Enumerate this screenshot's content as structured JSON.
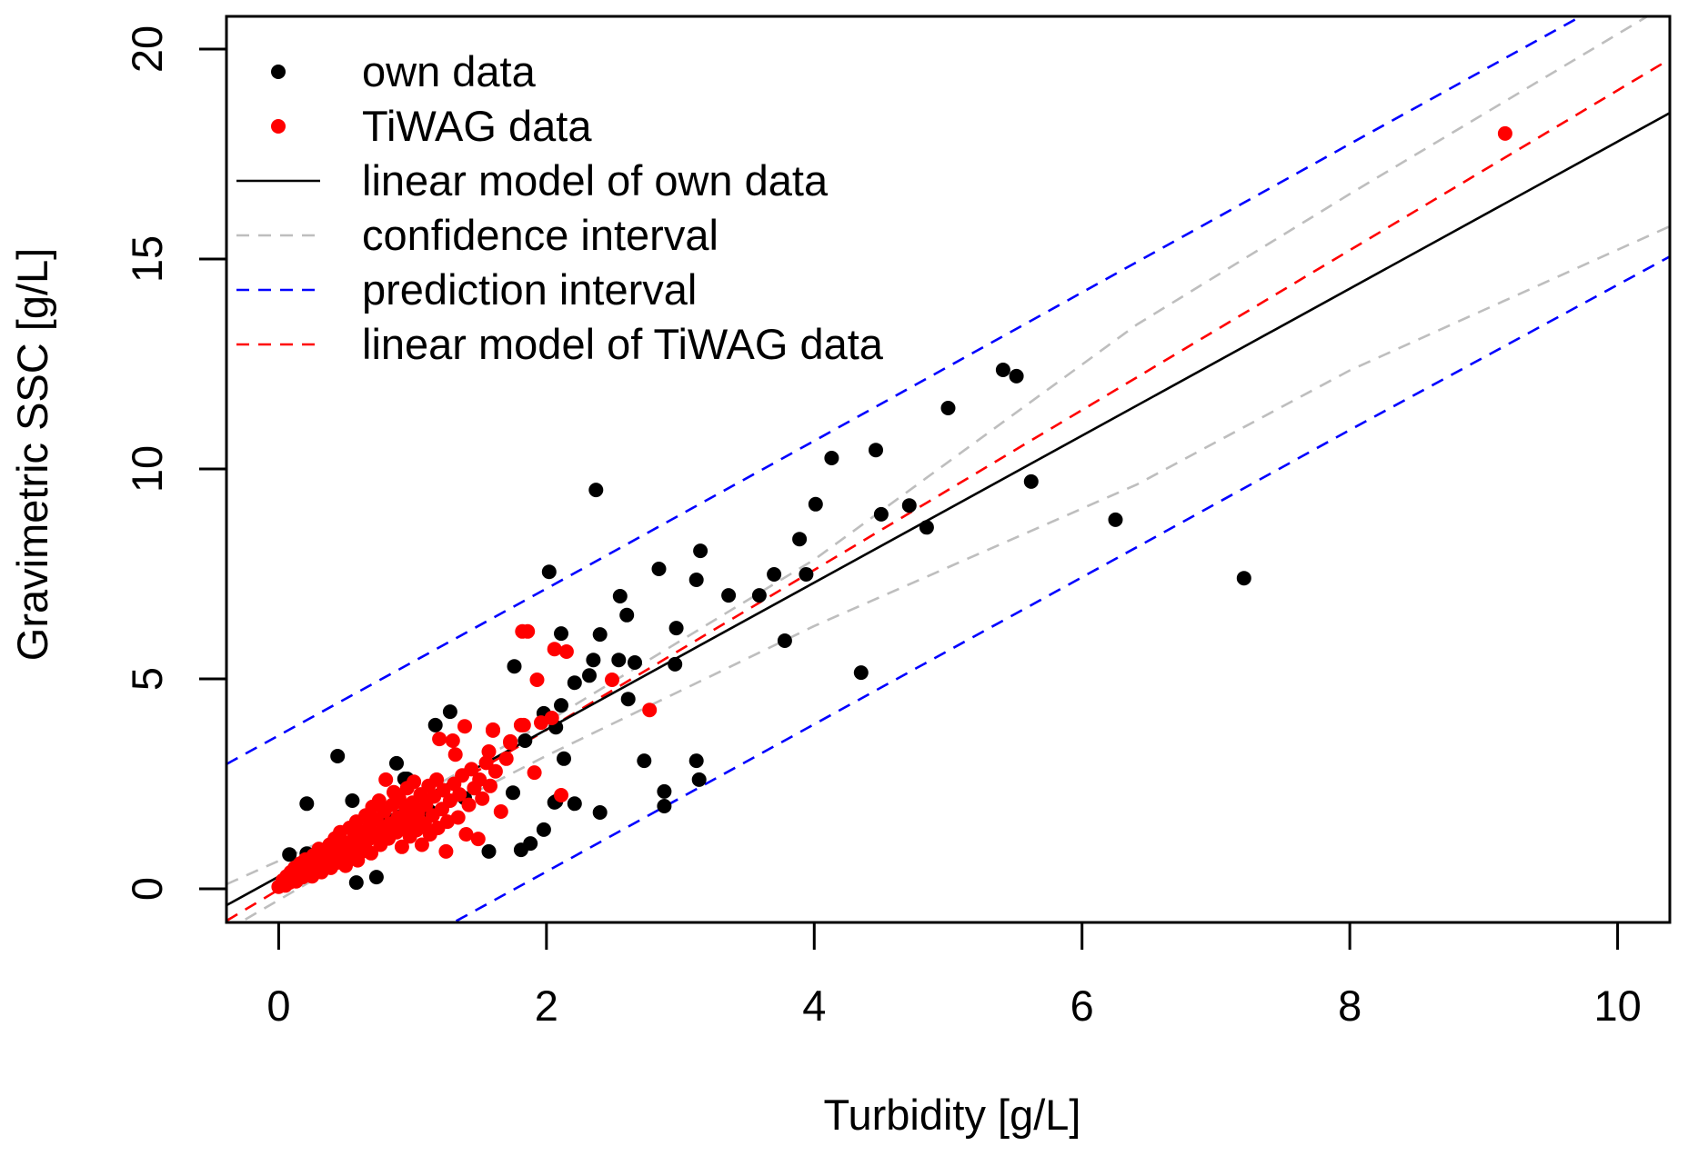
{
  "chart_data": {
    "type": "scatter",
    "title": "",
    "xlabel": "Turbidity [g/L]",
    "ylabel": "Gravimetric SSC [g/L]",
    "xlim": [
      -0.39,
      10.39
    ],
    "ylim": [
      -0.8,
      20.78
    ],
    "grid": false,
    "legend_position": "top-left",
    "x_ticks": [
      0,
      2,
      4,
      6,
      8,
      10
    ],
    "x_tick_labels": [
      "0",
      "2",
      "4",
      "6",
      "8",
      "10"
    ],
    "y_ticks": [
      0,
      5,
      10,
      15,
      20
    ],
    "y_tick_labels": [
      "0",
      "5",
      "10",
      "15",
      "20"
    ],
    "colors": {
      "own": "#000000",
      "tiwag": "#ff0000",
      "confidence": "#bebebe",
      "prediction": "#0000ff",
      "tiwag_model": "#ff0000"
    },
    "legend": [
      {
        "label": "own data",
        "kind": "point",
        "color": "#000000"
      },
      {
        "label": "TiWAG data",
        "kind": "point",
        "color": "#ff0000"
      },
      {
        "label": "linear model of own data",
        "kind": "solid",
        "color": "#000000"
      },
      {
        "label": "confidence interval",
        "kind": "dashed",
        "color": "#bebebe"
      },
      {
        "label": "prediction interval",
        "kind": "dashed",
        "color": "#0000ff"
      },
      {
        "label": "linear model of TiWAG data",
        "kind": "dashed",
        "color": "#ff0000"
      }
    ],
    "models": {
      "own": {
        "intercept": 0.29,
        "slope": 1.75
      },
      "tiwag": {
        "intercept": -0.02,
        "slope": 1.905
      }
    },
    "lines": [
      {
        "name": "prediction-upper",
        "color": "#0000ff",
        "dashed": true,
        "x": [
          -0.39,
          2,
          4,
          6.41,
          8,
          10.39
        ],
        "y": [
          2.97,
          7.15,
          10.67,
          14.93,
          17.74,
          21.95
        ]
      },
      {
        "name": "confidence-upper",
        "color": "#bebebe",
        "dashed": true,
        "x": [
          -0.39,
          0.5,
          1.0,
          2,
          4,
          6.41,
          8,
          10.39
        ],
        "y": [
          0.11,
          1.38,
          2.14,
          3.97,
          7.84,
          13.44,
          16.55,
          21.1
        ]
      },
      {
        "name": "tiwag-model",
        "color": "#ff0000",
        "dashed": true,
        "x": [
          -0.39,
          10.39
        ],
        "y": [
          -0.76,
          19.76
        ]
      },
      {
        "name": "own-model",
        "color": "#000000",
        "dashed": false,
        "x": [
          -0.39,
          10.39
        ],
        "y": [
          -0.39,
          18.48
        ]
      },
      {
        "name": "confidence-lower",
        "color": "#bebebe",
        "dashed": true,
        "x": [
          -0.39,
          0.5,
          1.0,
          2,
          4,
          6.41,
          8,
          10.39
        ],
        "y": [
          -0.99,
          0.66,
          1.54,
          3.17,
          6.26,
          9.63,
          12.35,
          15.78
        ]
      },
      {
        "name": "prediction-lower",
        "color": "#0000ff",
        "dashed": true,
        "x": [
          -0.39,
          2,
          4,
          6.41,
          8,
          10.39
        ],
        "y": [
          -3.76,
          0.41,
          3.92,
          8.14,
          10.93,
          15.06
        ]
      }
    ],
    "series": [
      {
        "name": "own data",
        "color": "#000000",
        "points": [
          [
            0.08,
            0.82
          ],
          [
            0.21,
            0.84
          ],
          [
            0.21,
            2.03
          ],
          [
            0.44,
            3.16
          ],
          [
            0.55,
            2.1
          ],
          [
            0.58,
            0.15
          ],
          [
            0.73,
            0.28
          ],
          [
            0.88,
            2.99
          ],
          [
            0.94,
            2.62
          ],
          [
            0.96,
            2.62
          ],
          [
            1.13,
            1.84
          ],
          [
            1.17,
            3.9
          ],
          [
            1.28,
            4.22
          ],
          [
            1.39,
            2.16
          ],
          [
            1.57,
            0.89
          ],
          [
            1.75,
            2.29
          ],
          [
            1.76,
            5.3
          ],
          [
            1.81,
            0.93
          ],
          [
            1.84,
            3.53
          ],
          [
            1.88,
            1.08
          ],
          [
            1.98,
            1.41
          ],
          [
            1.98,
            4.18
          ],
          [
            2.02,
            7.55
          ],
          [
            2.06,
            2.06
          ],
          [
            2.07,
            2.08
          ],
          [
            2.07,
            3.85
          ],
          [
            2.11,
            4.37
          ],
          [
            2.11,
            6.08
          ],
          [
            2.13,
            3.1
          ],
          [
            2.21,
            2.03
          ],
          [
            2.21,
            4.91
          ],
          [
            2.32,
            5.08
          ],
          [
            2.35,
            5.45
          ],
          [
            2.37,
            9.5
          ],
          [
            2.4,
            1.82
          ],
          [
            2.4,
            6.06
          ],
          [
            2.54,
            5.45
          ],
          [
            2.55,
            6.97
          ],
          [
            2.6,
            6.52
          ],
          [
            2.61,
            4.52
          ],
          [
            2.66,
            5.39
          ],
          [
            2.73,
            3.05
          ],
          [
            2.84,
            7.62
          ],
          [
            2.88,
            2.32
          ],
          [
            2.88,
            1.97
          ],
          [
            2.96,
            5.35
          ],
          [
            2.97,
            6.21
          ],
          [
            3.12,
            3.05
          ],
          [
            3.12,
            7.36
          ],
          [
            3.14,
            2.6
          ],
          [
            3.15,
            8.05
          ],
          [
            3.36,
            6.99
          ],
          [
            3.59,
            6.99
          ],
          [
            3.7,
            7.49
          ],
          [
            3.78,
            5.91
          ],
          [
            3.89,
            8.33
          ],
          [
            3.94,
            7.49
          ],
          [
            4.01,
            9.16
          ],
          [
            4.13,
            10.26
          ],
          [
            4.35,
            5.15
          ],
          [
            4.46,
            10.45
          ],
          [
            4.5,
            8.92
          ],
          [
            4.71,
            9.13
          ],
          [
            4.84,
            8.61
          ],
          [
            5.0,
            11.45
          ],
          [
            5.41,
            12.36
          ],
          [
            5.51,
            12.21
          ],
          [
            5.62,
            9.7
          ],
          [
            6.25,
            8.79
          ],
          [
            7.21,
            7.4
          ]
        ]
      },
      {
        "name": "TiWAG data",
        "color": "#ff0000",
        "points": [
          [
            0.0,
            0.05
          ],
          [
            0.02,
            0.1
          ],
          [
            0.03,
            0.2
          ],
          [
            0.05,
            0.08
          ],
          [
            0.06,
            0.3
          ],
          [
            0.08,
            0.15
          ],
          [
            0.09,
            0.4
          ],
          [
            0.1,
            0.25
          ],
          [
            0.12,
            0.5
          ],
          [
            0.13,
            0.18
          ],
          [
            0.15,
            0.35
          ],
          [
            0.16,
            0.6
          ],
          [
            0.18,
            0.28
          ],
          [
            0.19,
            0.45
          ],
          [
            0.2,
            0.7
          ],
          [
            0.22,
            0.38
          ],
          [
            0.23,
            0.55
          ],
          [
            0.25,
            0.3
          ],
          [
            0.26,
            0.8
          ],
          [
            0.28,
            0.48
          ],
          [
            0.29,
            0.65
          ],
          [
            0.3,
            0.95
          ],
          [
            0.32,
            0.4
          ],
          [
            0.33,
            0.72
          ],
          [
            0.35,
            0.58
          ],
          [
            0.36,
            0.88
          ],
          [
            0.38,
            1.05
          ],
          [
            0.39,
            0.5
          ],
          [
            0.4,
            0.75
          ],
          [
            0.42,
            1.2
          ],
          [
            0.43,
            0.62
          ],
          [
            0.45,
            0.9
          ],
          [
            0.46,
            1.35
          ],
          [
            0.48,
            0.7
          ],
          [
            0.49,
            1.1
          ],
          [
            0.5,
            0.55
          ],
          [
            0.52,
            0.95
          ],
          [
            0.53,
            1.45
          ],
          [
            0.55,
            0.8
          ],
          [
            0.56,
            1.2
          ],
          [
            0.58,
            1.6
          ],
          [
            0.59,
            0.68
          ],
          [
            0.6,
            1.05
          ],
          [
            0.62,
            1.35
          ],
          [
            0.63,
            0.9
          ],
          [
            0.65,
            1.75
          ],
          [
            0.66,
            1.15
          ],
          [
            0.68,
            1.5
          ],
          [
            0.69,
            0.85
          ],
          [
            0.7,
            1.95
          ],
          [
            0.72,
            1.25
          ],
          [
            0.73,
            1.65
          ],
          [
            0.75,
            2.1
          ],
          [
            0.76,
            1.05
          ],
          [
            0.78,
            1.4
          ],
          [
            0.79,
            1.85
          ],
          [
            0.8,
            2.6
          ],
          [
            0.82,
            1.2
          ],
          [
            0.83,
            1.55
          ],
          [
            0.85,
            2.0
          ],
          [
            0.86,
            2.3
          ],
          [
            0.88,
            1.35
          ],
          [
            0.89,
            1.7
          ],
          [
            0.9,
            2.15
          ],
          [
            0.92,
            1.0
          ],
          [
            0.93,
            1.5
          ],
          [
            0.95,
            1.9
          ],
          [
            0.96,
            2.4
          ],
          [
            0.98,
            1.25
          ],
          [
            0.99,
            1.65
          ],
          [
            1.0,
            2.05
          ],
          [
            1.01,
            2.55
          ],
          [
            1.03,
            1.4
          ],
          [
            1.04,
            1.8
          ],
          [
            1.06,
            2.25
          ],
          [
            1.07,
            1.05
          ],
          [
            1.09,
            1.55
          ],
          [
            1.1,
            2.0
          ],
          [
            1.12,
            2.45
          ],
          [
            1.13,
            1.3
          ],
          [
            1.15,
            1.75
          ],
          [
            1.16,
            2.2
          ],
          [
            1.18,
            2.6
          ],
          [
            1.19,
            1.45
          ],
          [
            1.2,
            3.57
          ],
          [
            1.22,
            1.9
          ],
          [
            1.23,
            2.35
          ],
          [
            1.25,
            0.89
          ],
          [
            1.26,
            1.6
          ],
          [
            1.28,
            2.1
          ],
          [
            1.3,
            3.53
          ],
          [
            1.31,
            2.5
          ],
          [
            1.32,
            3.2
          ],
          [
            1.34,
            1.7
          ],
          [
            1.35,
            2.25
          ],
          [
            1.37,
            2.7
          ],
          [
            1.39,
            3.87
          ],
          [
            1.4,
            1.3
          ],
          [
            1.42,
            2.0
          ],
          [
            1.44,
            2.85
          ],
          [
            1.46,
            2.4
          ],
          [
            1.49,
            1.19
          ],
          [
            1.5,
            2.6
          ],
          [
            1.52,
            2.15
          ],
          [
            1.55,
            3.0
          ],
          [
            1.57,
            3.27
          ],
          [
            1.58,
            2.45
          ],
          [
            1.6,
            3.79
          ],
          [
            1.6,
            3.77
          ],
          [
            1.62,
            2.8
          ],
          [
            1.66,
            1.84
          ],
          [
            1.7,
            3.1
          ],
          [
            1.73,
            3.48
          ],
          [
            1.73,
            3.51
          ],
          [
            1.81,
            3.9
          ],
          [
            1.82,
            6.13
          ],
          [
            1.83,
            3.9
          ],
          [
            1.86,
            6.13
          ],
          [
            1.91,
            2.77
          ],
          [
            1.93,
            4.98
          ],
          [
            1.96,
            3.96
          ],
          [
            2.04,
            4.07
          ],
          [
            2.06,
            5.71
          ],
          [
            2.11,
            2.23
          ],
          [
            2.15,
            5.65
          ],
          [
            2.49,
            4.98
          ],
          [
            2.77,
            4.26
          ],
          [
            9.16,
            17.99
          ]
        ]
      }
    ]
  }
}
